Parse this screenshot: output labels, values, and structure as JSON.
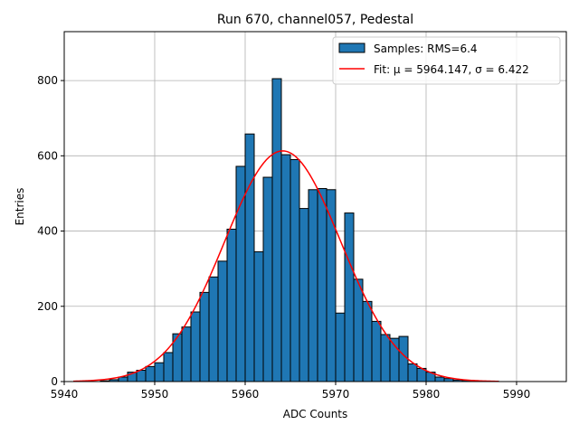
{
  "chart_data": {
    "type": "bar",
    "title": "Run 670, channel057, Pedestal",
    "xlabel": "ADC Counts",
    "ylabel": "Entries",
    "xlim": [
      5940,
      5995.5
    ],
    "ylim": [
      0,
      930
    ],
    "xticks": [
      5940,
      5950,
      5960,
      5970,
      5980,
      5990
    ],
    "yticks": [
      0,
      200,
      400,
      600,
      800
    ],
    "grid": true,
    "legend_position": "top-right",
    "bin_width": 1,
    "series": [
      {
        "name": "Samples: RMS=6.4",
        "color": "#1f77b4",
        "edge_color": "#000000",
        "bins_start": [
          5944,
          5945,
          5946,
          5947,
          5948,
          5949,
          5950,
          5951,
          5952,
          5953,
          5954,
          5955,
          5956,
          5957,
          5958,
          5959,
          5960,
          5961,
          5962,
          5963,
          5964,
          5965,
          5966,
          5967,
          5968,
          5969,
          5970,
          5971,
          5972,
          5973,
          5974,
          5975,
          5976,
          5977,
          5978,
          5979,
          5980,
          5981,
          5982,
          5983,
          5984,
          5985,
          5986,
          5987
        ],
        "counts": [
          2,
          5,
          12,
          25,
          30,
          40,
          50,
          77,
          127,
          145,
          185,
          237,
          278,
          320,
          405,
          572,
          658,
          345,
          543,
          805,
          603,
          590,
          460,
          510,
          513,
          510,
          182,
          448,
          272,
          213,
          160,
          125,
          115,
          120,
          47,
          35,
          25,
          12,
          8,
          4,
          3,
          2,
          1,
          1
        ]
      },
      {
        "name": "Fit: μ = 5964.147, σ = 6.422",
        "color": "#ff0000",
        "type": "line",
        "mu": 5964.147,
        "sigma": 6.422,
        "amplitude": 613,
        "x_range": [
          5941,
          5988
        ]
      }
    ]
  }
}
